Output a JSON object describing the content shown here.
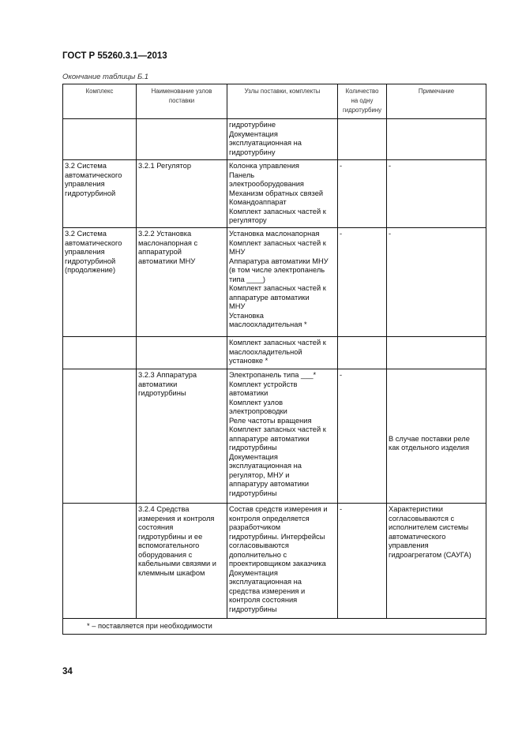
{
  "header": {
    "doc_code": "ГОСТ Р 55260.3.1—2013",
    "caption": "Окончание таблицы Б.1"
  },
  "table": {
    "columns": [
      "Комплекс",
      "Наименование узлов\nпоставки",
      "Узлы поставки, комплекты",
      "Количество\nна одну\nгидротурбину",
      "Примечание"
    ],
    "rows": [
      [
        "",
        "",
        "гидротурбине\nДокументация\nэксплуатационная на\nгидротурбину",
        "",
        ""
      ],
      [
        "3.2 Система\nавтоматического\nуправления\nгидротурбиной",
        "3.2.1 Регулятор",
        "Колонка управления\nПанель\nэлектрооборудования\nМеханизм обратных связей\nКомандоаппарат\nКомплект запасных частей к\nрегулятору",
        "-",
        "-"
      ],
      [
        "3.2 Система\nавтоматического\nуправления\nгидротурбиной\n(продолжение)",
        "3.2.2 Установка\nмаслонапорная с\nаппаратурой\nавтоматики МНУ",
        "Установка маслонапорная\nКомплект запасных частей к\nМНУ\nАппаратура автоматики МНУ\n(в том числе электропанель\nтипа ____)\nКомплект запасных частей к\nаппаратуре автоматики\nМНУ\nУстановка\nмаслоохладительная *",
        "-",
        "-"
      ],
      [
        "",
        "",
        "Комплект запасных частей к\nмаслоохладительной\nустановке *",
        "",
        ""
      ],
      [
        "",
        "3.2.3 Аппаратура\nавтоматики\nгидротурбины",
        "Электропанель типа ___*\nКомплект устройств\nавтоматики\nКомплект узлов\nэлектропроводки\nРеле частоты вращения\nКомплект запасных частей к\nаппаратуре автоматики\nгидротурбины\nДокументация\nэксплуатационная на\nрегулятор, МНУ и\nаппаратуру автоматики\nгидротурбины",
        "-",
        "\n\n\n\n\n\n\nВ случае поставки реле\nкак отдельного изделия"
      ],
      [
        "",
        "3.2.4 Средства\nизмерения и контроля\nсостояния\nгидротурбины и ее\nвспомогательного\nоборудования с\nкабельными связями и\nклеммным шкафом",
        "Состав средств измерения и\nконтроля определяется\nразработчиком\nгидротурбины. Интерфейсы\nсогласовываются\nдополнительно с\nпроектировщиком заказчика\nДокументация\nэксплуатационная на\nсредства измерения и\nконтроля состояния\nгидротурбины",
        "-",
        "Характеристики\nсогласовываются с\nисполнителем системы\nавтоматического\nуправления\nгидроагрегатом (САУГА)"
      ]
    ],
    "footnote": "* – поставляется при необходимости"
  },
  "footer": {
    "page_number": "34"
  }
}
